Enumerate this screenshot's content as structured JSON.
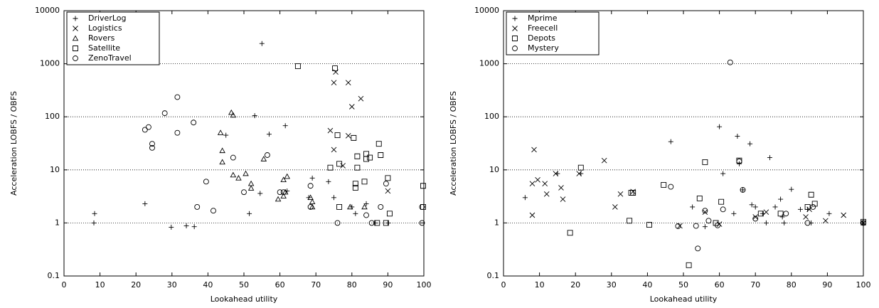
{
  "chart_data": [
    {
      "type": "scatter",
      "xlabel": "Lookahead utility",
      "ylabel": "Acceleration LOBFS / OBFS",
      "xlim": [
        0,
        100
      ],
      "ylim": [
        0.1,
        10000
      ],
      "log_y": true,
      "grid": true,
      "legend": "upper left",
      "xticks": [
        0,
        10,
        20,
        30,
        40,
        50,
        60,
        70,
        80,
        90,
        100
      ],
      "yticks": [
        0.1,
        1,
        10,
        100,
        1000,
        10000
      ],
      "series": [
        {
          "name": "DriverLog",
          "marker": "plus",
          "color": "#000000",
          "x": [
            8.3,
            8.5,
            22.5,
            29.8,
            34,
            36.2,
            55,
            53,
            45,
            57,
            61.5,
            51.5,
            54.5,
            62,
            69,
            68,
            73.5,
            75,
            80,
            81,
            84,
            86.5,
            90
          ],
          "values": [
            1.0,
            1.5,
            2.3,
            0.83,
            0.88,
            0.85,
            2400,
            105,
            45,
            47,
            68,
            1.5,
            3.6,
            4,
            7,
            3,
            6,
            3,
            2,
            1.5,
            2.3,
            1,
            1
          ]
        },
        {
          "name": "Logistics",
          "marker": "cross",
          "color": "#000000",
          "x": [
            74,
            75,
            75,
            75.5,
            79,
            79,
            80,
            82.5,
            77.5,
            90
          ],
          "values": [
            55,
            24,
            440,
            700,
            440,
            44,
            155,
            220,
            12,
            4
          ]
        },
        {
          "name": "Rovers",
          "marker": "triangle",
          "color": "#000000",
          "x": [
            43.5,
            44,
            44,
            46.5,
            47,
            47,
            48.5,
            50.5,
            52,
            52,
            55.5,
            59.5,
            61,
            61.5,
            62,
            61,
            68.5,
            69,
            69,
            79.5,
            83.5
          ],
          "values": [
            50,
            23,
            14,
            120,
            107,
            8,
            7,
            8.5,
            5.5,
            4.5,
            16,
            2.8,
            6.5,
            3.8,
            7.5,
            3.2,
            3,
            2.5,
            2,
            2,
            2
          ]
        },
        {
          "name": "Satellite",
          "marker": "square",
          "color": "#000000",
          "x": [
            65,
            75.3,
            74,
            76,
            76.5,
            76.5,
            80.5,
            81,
            81,
            81.5,
            81.5,
            83.5,
            84,
            84,
            85,
            87.5,
            87,
            88,
            89.5,
            90,
            90.5,
            99.8,
            99.8
          ],
          "values": [
            900,
            820,
            11,
            45,
            13,
            2,
            40,
            5.5,
            4.6,
            18,
            11,
            6,
            20,
            16,
            17,
            31,
            1,
            19,
            1,
            7,
            1.5,
            5,
            2
          ]
        },
        {
          "name": "ZenoTravel",
          "marker": "circle",
          "color": "#000000",
          "x": [
            22.5,
            23.5,
            24.5,
            24.5,
            28,
            31.5,
            31.5,
            36,
            37,
            39.5,
            41.5,
            50,
            47,
            56.5,
            60,
            61,
            68.5,
            68.5,
            76,
            84,
            85.5,
            88,
            89.5,
            99.5,
            99.5
          ],
          "values": [
            57,
            64,
            31,
            26,
            117,
            235,
            50,
            78,
            2,
            6,
            1.7,
            3.8,
            17,
            19,
            3.8,
            3.8,
            5,
            2,
            1,
            1.4,
            1,
            2,
            5.5,
            1,
            2
          ]
        }
      ]
    },
    {
      "type": "scatter",
      "xlabel": "Lookahead utility",
      "ylabel": "Acceleration LOBFS / OBFS",
      "xlim": [
        0,
        100
      ],
      "ylim": [
        0.1,
        10000
      ],
      "log_y": true,
      "grid": true,
      "legend": "upper left",
      "xticks": [
        0,
        10,
        20,
        30,
        40,
        50,
        60,
        70,
        80,
        90,
        100
      ],
      "yticks": [
        0.1,
        1,
        10,
        100,
        1000,
        10000
      ],
      "series": [
        {
          "name": "Mprime",
          "marker": "plus",
          "color": "#000000",
          "x": [
            6,
            15,
            21.5,
            46.5,
            52.5,
            56,
            60,
            61,
            64,
            65,
            65.5,
            66.5,
            68.5,
            69,
            70,
            72,
            73,
            74,
            75.5,
            77,
            77.5,
            78,
            80,
            82.5,
            84.5,
            85.5,
            90.5,
            99.8
          ],
          "values": [
            3,
            8.5,
            8.5,
            34,
            2,
            0.85,
            65,
            8.5,
            1.5,
            43,
            13,
            4.2,
            31,
            2.2,
            2,
            1.5,
            1,
            17,
            2,
            2.8,
            1.3,
            1,
            4.3,
            1.8,
            1.8,
            1,
            1.5,
            1
          ]
        },
        {
          "name": "Freecell",
          "marker": "cross",
          "color": "#000000",
          "x": [
            8,
            8,
            8.5,
            9.5,
            11.5,
            12,
            14.5,
            16,
            16.5,
            21,
            28,
            31,
            32.5,
            36,
            49,
            56,
            60,
            70,
            73,
            84,
            85,
            89.5,
            94.5,
            100
          ],
          "values": [
            1.4,
            5.5,
            24,
            6.5,
            5.5,
            3.5,
            8.5,
            4.6,
            2.8,
            8.5,
            15,
            2,
            3.5,
            3.9,
            0.88,
            1.6,
            0.95,
            1.3,
            1.6,
            1.3,
            1.8,
            1.1,
            1.4,
            1
          ]
        },
        {
          "name": "Depots",
          "marker": "square",
          "color": "#000000",
          "x": [
            18.5,
            21.5,
            35,
            35.5,
            36,
            40.5,
            44.5,
            51.5,
            54.5,
            56,
            59,
            60.5,
            65.5,
            71.5,
            77,
            85.5,
            86.5,
            84.5,
            100
          ],
          "values": [
            0.65,
            11,
            1.1,
            3.7,
            3.7,
            0.92,
            5.2,
            0.16,
            2.9,
            14,
            1,
            2.5,
            15,
            1.5,
            1.5,
            3.4,
            2.3,
            2,
            1.05
          ]
        },
        {
          "name": "Mystery",
          "marker": "circle",
          "color": "#000000",
          "x": [
            46.5,
            48.5,
            53.5,
            54,
            56,
            57,
            59.5,
            61,
            63,
            65.5,
            66.5,
            70,
            78.5,
            84.5,
            86,
            100
          ],
          "values": [
            4.8,
            0.87,
            0.88,
            0.33,
            1.7,
            1.1,
            0.9,
            1.8,
            1060,
            14.5,
            4.2,
            1.2,
            1.5,
            1,
            2,
            1
          ]
        }
      ]
    }
  ]
}
